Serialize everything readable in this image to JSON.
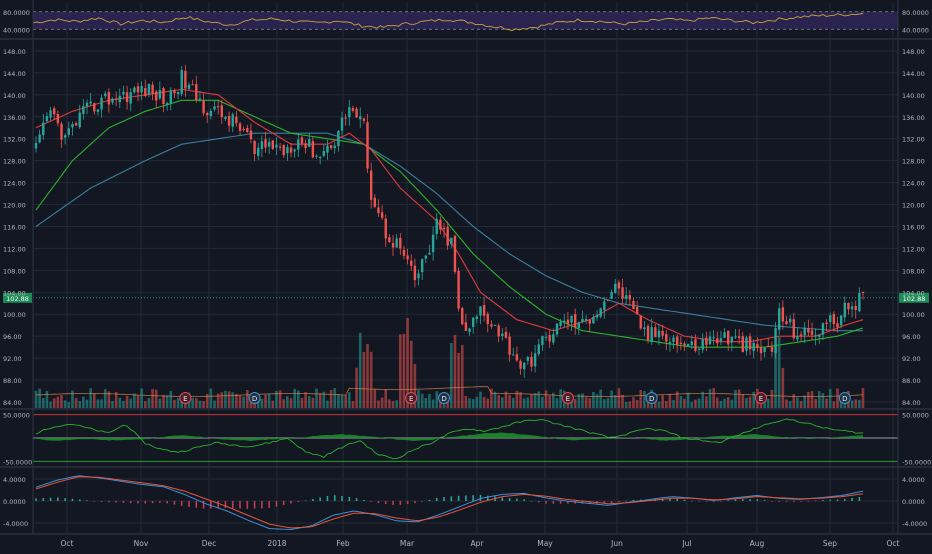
{
  "colors": {
    "background": "#131722",
    "grid": "#232838",
    "axis_text": "#b2b5be",
    "up": "#26a69a",
    "down": "#ef5350",
    "ma_fast": "#e03a3a",
    "ma_med": "#2bb32b",
    "ma_slow": "#3a7fa0",
    "rsi_line": "#c9a43a",
    "rsi_band": "#2a2350",
    "price_badge": "#1e8a55",
    "osc_fill": "#1f8a2e",
    "osc_line": "#2bb32b",
    "macd_line": "#3d8fd6",
    "signal_line": "#e3563a",
    "hist_up": "#26a69a",
    "hist_down": "#c43a55"
  },
  "chart_data": [
    {
      "type": "line",
      "title": "",
      "pane": "rsi",
      "yticks": [
        "80.0000",
        "40.0000"
      ],
      "ylim": [
        20,
        100
      ],
      "bands": [
        40,
        80
      ],
      "series": [
        {
          "values": [
            55,
            62,
            58,
            66,
            52,
            60,
            56,
            68,
            57,
            50,
            61,
            64,
            58,
            54,
            60,
            48,
            44,
            52,
            58,
            63,
            56,
            47,
            40,
            45,
            55,
            61,
            58,
            52,
            57,
            63,
            59,
            66,
            60,
            55,
            62,
            68,
            71,
            73,
            76
          ]
        }
      ]
    },
    {
      "type": "candlestick",
      "title": "",
      "pane": "price",
      "x": [
        "Oct",
        "Nov",
        "Dec",
        "2018",
        "Feb",
        "Mar",
        "Apr",
        "May",
        "Jun",
        "Jul",
        "Aug",
        "Sep",
        "Oct"
      ],
      "ylim": [
        84,
        150
      ],
      "yticks": [
        "148.00",
        "144.00",
        "140.00",
        "136.00",
        "132.00",
        "128.00",
        "124.00",
        "120.00",
        "116.00",
        "112.00",
        "108.00",
        "104.00",
        "100.00",
        "96.00",
        "92.00",
        "88.00",
        "84.00"
      ],
      "last_price": 103,
      "last_price_label": "102.88",
      "close_anchors": [
        [
          0,
          130
        ],
        [
          4,
          137
        ],
        [
          8,
          132
        ],
        [
          12,
          136
        ],
        [
          18,
          139
        ],
        [
          24,
          140
        ],
        [
          30,
          141
        ],
        [
          36,
          139
        ],
        [
          40,
          143
        ],
        [
          46,
          138
        ],
        [
          52,
          136
        ],
        [
          58,
          133
        ],
        [
          60,
          129
        ],
        [
          64,
          131
        ],
        [
          68,
          130
        ],
        [
          72,
          132
        ],
        [
          78,
          129
        ],
        [
          82,
          132
        ],
        [
          86,
          138
        ],
        [
          90,
          134
        ],
        [
          92,
          122
        ],
        [
          96,
          115
        ],
        [
          100,
          112
        ],
        [
          104,
          106
        ],
        [
          108,
          112
        ],
        [
          110,
          116
        ],
        [
          114,
          113
        ],
        [
          116,
          101
        ],
        [
          118,
          96
        ],
        [
          122,
          101
        ],
        [
          126,
          98
        ],
        [
          130,
          94
        ],
        [
          134,
          90
        ],
        [
          138,
          94
        ],
        [
          142,
          97
        ],
        [
          146,
          99
        ],
        [
          150,
          98
        ],
        [
          154,
          101
        ],
        [
          158,
          104
        ],
        [
          160,
          105
        ],
        [
          164,
          100
        ],
        [
          168,
          96
        ],
        [
          172,
          97
        ],
        [
          176,
          95
        ],
        [
          180,
          94
        ],
        [
          184,
          95
        ],
        [
          188,
          96
        ],
        [
          192,
          95
        ],
        [
          196,
          94
        ],
        [
          198,
          93
        ],
        [
          202,
          94
        ],
        [
          204,
          100
        ],
        [
          208,
          97
        ],
        [
          212,
          96
        ],
        [
          216,
          98
        ],
        [
          220,
          99
        ],
        [
          224,
          102
        ],
        [
          227,
          103
        ]
      ],
      "ma_fast": [
        [
          0,
          134
        ],
        [
          10,
          137
        ],
        [
          20,
          139
        ],
        [
          30,
          140
        ],
        [
          40,
          141
        ],
        [
          50,
          140
        ],
        [
          60,
          135
        ],
        [
          70,
          131
        ],
        [
          80,
          131
        ],
        [
          86,
          133
        ],
        [
          92,
          130
        ],
        [
          100,
          123
        ],
        [
          110,
          117
        ],
        [
          116,
          111
        ],
        [
          122,
          104
        ],
        [
          132,
          99
        ],
        [
          142,
          97
        ],
        [
          152,
          99
        ],
        [
          160,
          102
        ],
        [
          168,
          99
        ],
        [
          178,
          96
        ],
        [
          188,
          95
        ],
        [
          196,
          95
        ],
        [
          204,
          96
        ],
        [
          214,
          96
        ],
        [
          222,
          98
        ],
        [
          227,
          99
        ]
      ],
      "ma_med": [
        [
          0,
          119
        ],
        [
          10,
          128
        ],
        [
          20,
          134
        ],
        [
          30,
          137
        ],
        [
          40,
          139
        ],
        [
          50,
          139
        ],
        [
          60,
          136
        ],
        [
          70,
          133
        ],
        [
          80,
          132
        ],
        [
          90,
          131
        ],
        [
          100,
          126
        ],
        [
          110,
          119
        ],
        [
          120,
          111
        ],
        [
          130,
          105
        ],
        [
          140,
          100
        ],
        [
          150,
          97
        ],
        [
          160,
          96
        ],
        [
          170,
          95
        ],
        [
          180,
          94
        ],
        [
          190,
          94
        ],
        [
          200,
          94
        ],
        [
          210,
          95
        ],
        [
          220,
          96
        ],
        [
          227,
          97.5
        ]
      ],
      "ma_slow": [
        [
          0,
          116
        ],
        [
          15,
          123
        ],
        [
          30,
          128
        ],
        [
          40,
          131
        ],
        [
          50,
          132
        ],
        [
          60,
          133
        ],
        [
          70,
          133
        ],
        [
          80,
          133
        ],
        [
          90,
          131
        ],
        [
          100,
          127
        ],
        [
          110,
          122
        ],
        [
          120,
          116
        ],
        [
          130,
          111
        ],
        [
          140,
          107
        ],
        [
          150,
          104
        ],
        [
          160,
          102
        ],
        [
          170,
          101
        ],
        [
          180,
          100
        ],
        [
          190,
          99
        ],
        [
          200,
          98
        ],
        [
          210,
          97.5
        ],
        [
          220,
          97
        ],
        [
          227,
          97
        ]
      ],
      "event_markers": [
        {
          "label": "E",
          "x": 41
        },
        {
          "label": "D",
          "x": 60
        },
        {
          "label": "E",
          "x": 103
        },
        {
          "label": "D",
          "x": 112
        },
        {
          "label": "E",
          "x": 146
        },
        {
          "label": "D",
          "x": 169
        },
        {
          "label": "E",
          "x": 199
        },
        {
          "label": "D",
          "x": 222
        }
      ]
    },
    {
      "type": "area",
      "title": "",
      "pane": "oscillator",
      "yticks": [
        "50.0000",
        "-50.0000"
      ],
      "ylim": [
        -60,
        60
      ],
      "line_values": [
        10,
        25,
        30,
        20,
        10,
        30,
        -10,
        -25,
        -30,
        -20,
        -10,
        -15,
        -18,
        -10,
        0,
        -30,
        -40,
        -20,
        -5,
        -35,
        -45,
        -25,
        -10,
        10,
        20,
        15,
        25,
        35,
        40,
        30,
        20,
        10,
        0,
        10,
        20,
        15,
        0,
        -5,
        -10,
        5,
        20,
        35,
        40,
        30,
        20,
        15,
        10
      ],
      "fill_values": [
        -2,
        -6,
        -4,
        -2,
        -5,
        -4,
        -3,
        2,
        6,
        3,
        -2,
        -4,
        -6,
        -3,
        -1,
        2,
        6,
        8,
        5,
        2,
        -3,
        -6,
        -4,
        2,
        6,
        10,
        12,
        8,
        4,
        -2,
        -5,
        -3,
        -1,
        2,
        -2,
        -6,
        -3,
        1,
        4,
        6,
        8,
        4,
        1,
        -2,
        0,
        3,
        6
      ]
    },
    {
      "type": "line",
      "title": "",
      "pane": "macd",
      "yticks": [
        "4.0000",
        "0.0000",
        "-4.0000"
      ],
      "ylim": [
        -6,
        6
      ],
      "series": [
        {
          "values": [
            2.5,
            3.8,
            4.6,
            4.2,
            3.6,
            3.0,
            2.6,
            1.2,
            -0.5,
            -1.8,
            -3.5,
            -5.0,
            -5.2,
            -4.5,
            -2.6,
            -1.8,
            -2.5,
            -3.6,
            -3.8,
            -2.5,
            -1.0,
            0.5,
            1.2,
            1.4,
            0.6,
            0.0,
            -0.4,
            -0.8,
            -0.2,
            0.3,
            0.8,
            0.5,
            0.1,
            0.6,
            1.0,
            0.5,
            0.3,
            0.6,
            1.0,
            1.8
          ]
        },
        {
          "values": [
            2.2,
            3.4,
            4.4,
            4.3,
            3.8,
            3.3,
            2.8,
            1.8,
            0.4,
            -1.0,
            -2.6,
            -4.2,
            -4.9,
            -4.7,
            -3.3,
            -2.2,
            -2.3,
            -3.1,
            -3.6,
            -2.9,
            -1.6,
            -0.2,
            0.8,
            1.2,
            0.9,
            0.3,
            -0.1,
            -0.5,
            -0.3,
            0.1,
            0.5,
            0.5,
            0.2,
            0.4,
            0.8,
            0.6,
            0.4,
            0.5,
            0.8,
            1.3
          ]
        }
      ]
    }
  ]
}
